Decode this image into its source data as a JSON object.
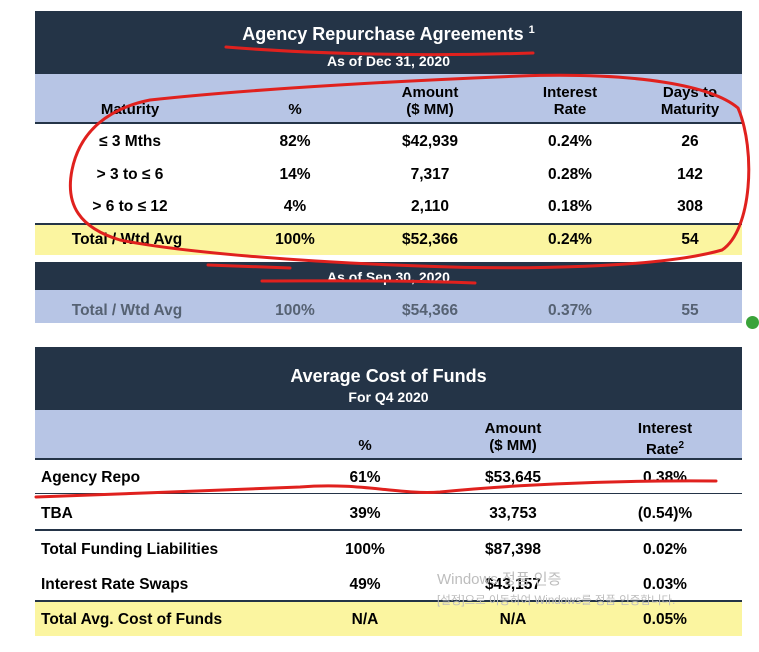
{
  "repo": {
    "title": "Agency Repurchase Agreements",
    "title_sup": "1",
    "as_of": "As of Dec 31, 2020",
    "headers": {
      "maturity": "Maturity",
      "pct": "%",
      "amount_l1": "Amount",
      "amount_l2": "($ MM)",
      "rate_l1": "Interest",
      "rate_l2": "Rate",
      "days_l1": "Days to",
      "days_l2": "Maturity"
    },
    "rows": [
      {
        "maturity": "≤ 3 Mths",
        "pct": "82%",
        "amount": "$42,939",
        "rate": "0.24%",
        "days": "26"
      },
      {
        "maturity": "> 3 to ≤ 6",
        "pct": "14%",
        "amount": "7,317",
        "rate": "0.28%",
        "days": "142"
      },
      {
        "maturity": "> 6 to ≤ 12",
        "pct": "4%",
        "amount": "2,110",
        "rate": "0.18%",
        "days": "308"
      }
    ],
    "total": {
      "maturity": "Total / Wtd Avg",
      "pct": "100%",
      "amount": "$52,366",
      "rate": "0.24%",
      "days": "54"
    },
    "prior_as_of": "As of Sep 30, 2020",
    "prior_total": {
      "maturity": "Total / Wtd Avg",
      "pct": "100%",
      "amount": "$54,366",
      "rate": "0.37%",
      "days": "55"
    }
  },
  "cof": {
    "title": "Average Cost of Funds",
    "subtitle": "For Q4 2020",
    "headers": {
      "pct": "%",
      "amount_l1": "Amount",
      "amount_l2": "($ MM)",
      "rate_l1": "Interest",
      "rate_l2": "Rate",
      "rate_sup": "2"
    },
    "rows": [
      {
        "label": "Agency Repo",
        "pct": "61%",
        "amount": "$53,645",
        "rate": "0.38%"
      },
      {
        "label": "TBA",
        "pct": "39%",
        "amount": "33,753",
        "rate": "(0.54)%"
      },
      {
        "label": "Total Funding Liabilities",
        "pct": "100%",
        "amount": "$87,398",
        "rate": "0.02%"
      },
      {
        "label": "Interest Rate Swaps",
        "pct": "49%",
        "amount": "$43,157",
        "rate": "0.03%"
      }
    ],
    "total": {
      "label": "Total Avg. Cost of Funds",
      "pct": "N/A",
      "amount": "N/A",
      "rate": "0.05%"
    }
  },
  "watermark": {
    "line1": "Windows 정품 인증",
    "line2": "[설정]으로 이동하여 Windows를 정품 인증합니다."
  },
  "colors": {
    "navy": "#243447",
    "lavender": "#b7c5e5",
    "yellow": "#fbf5a0",
    "ink": "#e0211e"
  }
}
